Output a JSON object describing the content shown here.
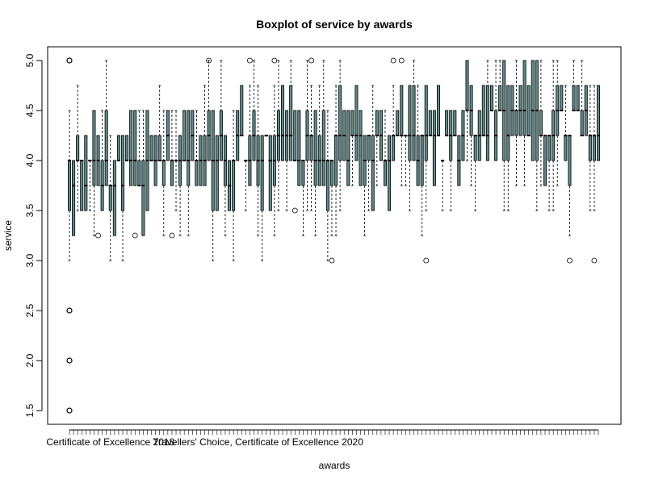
{
  "chart_data": {
    "type": "boxplot",
    "title": "Boxplot of service by awards",
    "xlabel": "awards",
    "ylabel": "service",
    "ylim": [
      1.5,
      5.0
    ],
    "yticks": [
      "1.5",
      "2.0",
      "2.5",
      "3.0",
      "3.5",
      "4.0",
      "4.5",
      "5.0"
    ],
    "category_count": 130,
    "visible_category_labels": [
      {
        "index": 10,
        "label": "Certificate of Excellence 2018"
      },
      {
        "index": 46,
        "label": "Travellers' Choice, Certificate of Excellence 2020"
      }
    ],
    "box_fill": "#5f8c8c",
    "grid": false,
    "outlier_style": "open circle",
    "notable_outliers": [
      {
        "category_index": 0,
        "values": [
          5.0,
          2.5,
          2.0,
          1.5
        ]
      }
    ]
  }
}
